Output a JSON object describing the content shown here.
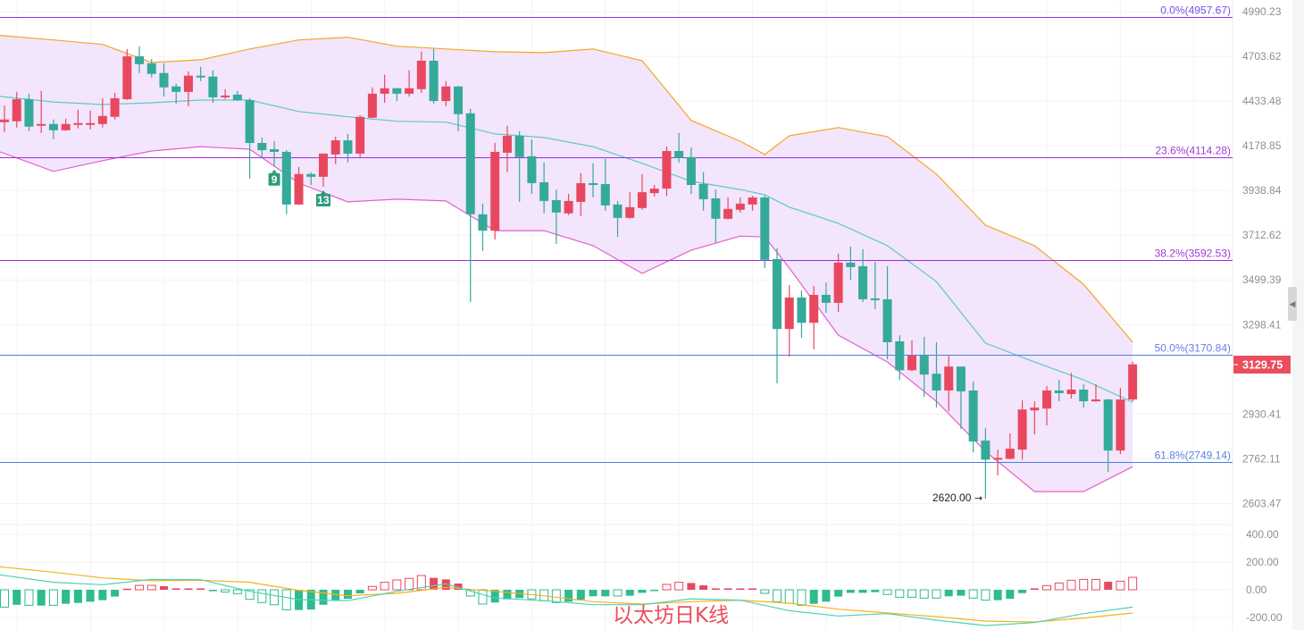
{
  "chart_data": {
    "type": "candlestick",
    "title": "以太坊日K线",
    "scale": "log",
    "colors": {
      "up": "#e8485f",
      "down": "#35aa99",
      "band_fill": "#f3e5fc",
      "upper_band": "#f5a623",
      "middle_band": "#5ec9c4",
      "lower_band": "#e55fcb",
      "fib_purple": "#9b2de0",
      "fib_blue": "#4a7fe0",
      "dif": "#4fd1b5",
      "dea": "#f5b21a"
    },
    "price_axis": {
      "ticks": [
        "4990.23",
        "4703.62",
        "4433.48",
        "4178.85",
        "3938.84",
        "3712.62",
        "3499.39",
        "3298.41",
        "2930.41",
        "2762.11",
        "2603.47"
      ]
    },
    "last_price": {
      "value": 3129.75,
      "label": "3129.75"
    },
    "low_annotation": {
      "value": 2620.0,
      "label": "2620.00",
      "arrow": "→",
      "candle": 81
    },
    "fibonacci": [
      {
        "label": "0.0%(4957.67)",
        "value": 4957.67,
        "color": "#9b2de0",
        "text_color": "#7a4fe6"
      },
      {
        "label": "23.6%(4114.28)",
        "value": 4114.28,
        "color": "#9b2de0",
        "text_color": "#a23ad8"
      },
      {
        "label": "38.2%(3592.53)",
        "value": 3592.53,
        "color": "#9b2de0",
        "text_color": "#a23ad8"
      },
      {
        "label": "50.0%(3170.84)",
        "value": 3170.84,
        "color": "#4a7fe0",
        "text_color": "#6a7ee8"
      },
      {
        "label": "61.8%(2749.14)",
        "value": 2749.14,
        "color": "#4a7fe0",
        "text_color": "#5d82e6"
      }
    ],
    "markers": [
      {
        "label": "9",
        "candle": 23
      },
      {
        "label": "13",
        "candle": 27
      }
    ],
    "candles_ohlc": [
      [
        4311.3,
        4408,
        4255.4,
        4326.6
      ],
      [
        4316.4,
        4487.6,
        4280.8,
        4444.4
      ],
      [
        4444.4,
        4476.8,
        4260.4,
        4285.9
      ],
      [
        4291,
        4493,
        4250,
        4301
      ],
      [
        4301,
        4326.6,
        4214.6,
        4265.5
      ],
      [
        4265.5,
        4331.7,
        4263,
        4301
      ],
      [
        4296,
        4382.6,
        4275.7,
        4306.2
      ],
      [
        4296,
        4377.5,
        4270.6,
        4306.2
      ],
      [
        4301,
        4449.8,
        4280.8,
        4347
      ],
      [
        4341.9,
        4482.2,
        4326.6,
        4449.8
      ],
      [
        4444.4,
        4749.5,
        4440,
        4703.6
      ],
      [
        4703.6,
        4766.7,
        4601,
        4655
      ],
      [
        4660.4,
        4687.4,
        4574,
        4595.6
      ],
      [
        4601,
        4660.4,
        4460.6,
        4514.6
      ],
      [
        4520,
        4536.2,
        4418.2,
        4487.6
      ],
      [
        4487.6,
        4611.8,
        4403,
        4584.8
      ],
      [
        4584.8,
        4638.8,
        4552.4,
        4574
      ],
      [
        4579.4,
        4617.2,
        4423.3,
        4455.2
      ],
      [
        4455.2,
        4503.8,
        4444.4,
        4466
      ],
      [
        4471.4,
        4493,
        4433.5,
        4439
      ],
      [
        4439,
        4449.8,
        4001.3,
        4194.3
      ],
      [
        4194.3,
        4224.8,
        4111.7,
        4154.9
      ],
      [
        4159.7,
        4204,
        4068.5,
        4145.3
      ],
      [
        4145.3,
        4154.9,
        3816.8,
        3866.5
      ],
      [
        3866.5,
        4063.7,
        3864,
        4025.3
      ],
      [
        4025.3,
        4034.9,
        3967.7,
        4010.9
      ],
      [
        4010.9,
        4137,
        3958.1,
        4135.7
      ],
      [
        4130.9,
        4229.5,
        4078.1,
        4209.1
      ],
      [
        4209.1,
        4245.2,
        4087.7,
        4135.7
      ],
      [
        4135.7,
        4352.1,
        4116.5,
        4341.9
      ],
      [
        4336.8,
        4514.6,
        4334,
        4476.8
      ],
      [
        4476.8,
        4590.2,
        4423.3,
        4509.2
      ],
      [
        4509.2,
        4511,
        4433.5,
        4476.8
      ],
      [
        4476.8,
        4617.2,
        4460.6,
        4509.2
      ],
      [
        4503.8,
        4733.3,
        4482.2,
        4676.6
      ],
      [
        4676.6,
        4749.5,
        4418.2,
        4433.5
      ],
      [
        4433.5,
        4552.4,
        4403,
        4520
      ],
      [
        4520,
        4522,
        4260.4,
        4357.2
      ],
      [
        4362.2,
        4387.7,
        3398.9,
        3816.8
      ],
      [
        3816.8,
        3871,
        3635.9,
        3735.2
      ],
      [
        3735.2,
        4194.3,
        3691.3,
        4145.3
      ],
      [
        4140.5,
        4291,
        4034.9,
        4234.6
      ],
      [
        4234.6,
        4260.4,
        3880,
        4116.5
      ],
      [
        4121.3,
        4214.6,
        3920.8,
        3977.3
      ],
      [
        3982.1,
        4087.7,
        3821.3,
        3884.6
      ],
      [
        3889.1,
        3943.6,
        3670,
        3825.8
      ],
      [
        3821.3,
        3920.8,
        3812.3,
        3884.6
      ],
      [
        3880,
        4030.1,
        3807.7,
        3977.3
      ],
      [
        3977.3,
        4082.9,
        3902.7,
        3967.7
      ],
      [
        3972.5,
        4106.9,
        3834.9,
        3862
      ],
      [
        3866.5,
        3884.6,
        3704.1,
        3798.7
      ],
      [
        3798.7,
        3929.8,
        3794.2,
        3852.9
      ],
      [
        3848.4,
        4025.3,
        3839.4,
        3929.8
      ],
      [
        3925.2,
        3967.7,
        3907.2,
        3948.5
      ],
      [
        3948.5,
        4174.1,
        3911.7,
        4150.1
      ],
      [
        4150.1,
        4250.3,
        4087.7,
        4111.7
      ],
      [
        4116.5,
        4169.3,
        3920.8,
        3967.7
      ],
      [
        3972.5,
        4034.9,
        3834.9,
        3893.6
      ],
      [
        3898.1,
        3943.6,
        3674.3,
        3794.2
      ],
      [
        3794.2,
        3902.7,
        3789.7,
        3843.9
      ],
      [
        3839.4,
        3902.7,
        3825.8,
        3871
      ],
      [
        3866.5,
        3911.7,
        3834.9,
        3902.7
      ],
      [
        3902.7,
        3911.7,
        3555,
        3593.3
      ],
      [
        3597.6,
        3648.7,
        3051.9,
        3279.5
      ],
      [
        3279.5,
        3475.3,
        3162,
        3419
      ],
      [
        3419,
        3451.2,
        3241.6,
        3306.4
      ],
      [
        3306.4,
        3471.3,
        3192.3,
        3431
      ],
      [
        3431,
        3487.3,
        3350.7,
        3394.9
      ],
      [
        3394.9,
        3623.1,
        3354.7,
        3580.6
      ],
      [
        3580.6,
        3657.2,
        3499.4,
        3559.3
      ],
      [
        3563.5,
        3644.4,
        3398.9,
        3411
      ],
      [
        3415,
        3584.8,
        3366.7,
        3407
      ],
      [
        3411,
        3563.5,
        3150.6,
        3222.6
      ],
      [
        3226.4,
        3252.9,
        3066.2,
        3105.4
      ],
      [
        3105.4,
        3230.2,
        3101,
        3165.7
      ],
      [
        3165.7,
        3245.3,
        2998.3,
        3087.6
      ],
      [
        3091.2,
        3222.6,
        2955.5,
        3023.3
      ],
      [
        3023.3,
        3165.7,
        2941.3,
        3120.4
      ],
      [
        3120.4,
        3121,
        2873.1,
        3019.8
      ],
      [
        3023.3,
        3059,
        2785.7,
        2826
      ],
      [
        2829.3,
        2876.4,
        2620,
        2759
      ],
      [
        2759,
        2795.8,
        2701.9,
        2765.5
      ],
      [
        2762.1,
        2856.3,
        2760,
        2799.2
      ],
      [
        2795.8,
        2984,
        2759,
        2948.3
      ],
      [
        2944.7,
        2980.4,
        2852.9,
        2955.5
      ],
      [
        2951.9,
        3041.2,
        2886.6,
        3023.3
      ],
      [
        3023.3,
        3066.2,
        2980.4,
        3012.6
      ],
      [
        3009,
        3094.7,
        2991.2,
        3026.9
      ],
      [
        3026.9,
        3048.3,
        2955.5,
        2980.4
      ],
      [
        2980.4,
        3048.3,
        2978,
        2987.5
      ],
      [
        2987.5,
        2990,
        2714.6,
        2792.4
      ],
      [
        2792.4,
        3034,
        2779,
        2987.5
      ],
      [
        2987.5,
        3141,
        2980.4,
        3129.75
      ]
    ],
    "bollinger": {
      "sample_candles": [
        0,
        4,
        8,
        12,
        16,
        20,
        24,
        28,
        32,
        36,
        40,
        44,
        48,
        52,
        56,
        60,
        62,
        64,
        68,
        72,
        76,
        80,
        84,
        88,
        92
      ],
      "upper": [
        4835.5,
        4806.8,
        4778.2,
        4665.8,
        4682,
        4749.5,
        4806.8,
        4824,
        4766.9,
        4749.7,
        4732.5,
        4726.8,
        4749.7,
        4676.6,
        4321.5,
        4204,
        4130.9,
        4234.6,
        4280.8,
        4229.5,
        4025.3,
        3762.5,
        3661.5,
        3479.3,
        3222.6
      ],
      "middle": [
        4460.6,
        4428.4,
        4413.1,
        4423.3,
        4439,
        4439,
        4372.4,
        4341.9,
        4316.4,
        4311.3,
        4245.2,
        4224.8,
        4174.1,
        4082.9,
        3986.9,
        3943.6,
        3916.2,
        3852.9,
        3771.6,
        3661.5,
        3491.4,
        3218.8,
        3139.3,
        3066.2,
        2976.9
      ],
      "lower": [
        4145.3,
        4039.7,
        4097.3,
        4150.1,
        4174.1,
        4159.7,
        3977.3,
        3880,
        3893.6,
        3884.6,
        3735.2,
        3735.2,
        3661.5,
        3529.3,
        3640.2,
        3708.3,
        3704.1,
        3555,
        3252.9,
        3139.3,
        2980.4,
        2789,
        2644.8,
        2644.8,
        2733.6
      ]
    },
    "macd": {
      "ticks": [
        "400.00",
        "200.00",
        "0.00",
        "-200.00"
      ],
      "histogram": [
        -125,
        -108,
        -112,
        -114,
        -112,
        -101,
        -95,
        -86,
        -75,
        -49,
        8,
        32,
        32,
        26,
        10,
        10,
        10,
        -10,
        -17,
        -28,
        -69,
        -92,
        -108,
        -144,
        -146,
        -142,
        -108,
        -80,
        -65,
        -26,
        24,
        54,
        71,
        82,
        103,
        86,
        75,
        45,
        -45,
        -103,
        -92,
        -69,
        -60,
        -65,
        -80,
        -92,
        -86,
        -71,
        -47,
        -47,
        -45,
        -43,
        -22,
        -4,
        39,
        54,
        49,
        32,
        10,
        10,
        10,
        10,
        -26,
        -86,
        -97,
        -112,
        -101,
        -86,
        -49,
        -22,
        -22,
        -17,
        -34,
        -54,
        -54,
        -60,
        -60,
        -47,
        -43,
        -60,
        -75,
        -75,
        -65,
        -24,
        10,
        30,
        49,
        69,
        75,
        75,
        58,
        62,
        90
      ],
      "hollow_bars": [
        1,
        3,
        5,
        12,
        13,
        19,
        20,
        21,
        22,
        23,
        24,
        31,
        32,
        33,
        34,
        35,
        39,
        40,
        44,
        45,
        46,
        51,
        55,
        56,
        63,
        64,
        65,
        66,
        73,
        74,
        75,
        76,
        77,
        80,
        81,
        86,
        87,
        88,
        89,
        90,
        92,
        93
      ],
      "sample_candles": [
        0,
        4,
        8,
        12,
        16,
        20,
        24,
        28,
        32,
        36,
        40,
        44,
        48,
        52,
        56,
        60,
        64,
        68,
        72,
        76,
        80,
        84,
        88,
        92
      ],
      "dif": [
        108,
        54,
        37,
        75,
        73,
        -11,
        -71,
        -79,
        -11,
        43,
        -60,
        -79,
        -108,
        -108,
        -65,
        -75,
        -151,
        -189,
        -172,
        -219,
        -258,
        -237,
        -172,
        -125
      ],
      "dea": [
        166,
        127,
        86,
        65,
        69,
        54,
        -4,
        -43,
        -26,
        17,
        -11,
        -43,
        -86,
        -103,
        -86,
        -75,
        -97,
        -140,
        -168,
        -194,
        -226,
        -232,
        -204,
        -168
      ]
    }
  }
}
